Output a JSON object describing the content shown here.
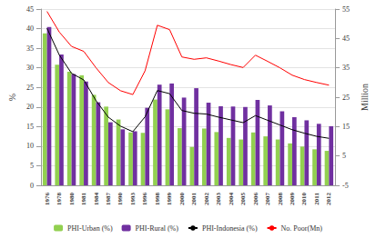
{
  "chart_data": {
    "type": "bar",
    "categories": [
      "1976",
      "1978",
      "1980",
      "1981",
      "1984",
      "1987",
      "1990",
      "1993",
      "1996",
      "1998",
      "1999",
      "2000",
      "2001",
      "2002",
      "2003",
      "2004",
      "2005",
      "2006",
      "2007",
      "2008",
      "2009",
      "2010",
      "2011",
      "2012"
    ],
    "y_label": "%",
    "y2_label": "Million",
    "ylim": [
      0,
      45
    ],
    "yticks": [
      0,
      5,
      10,
      15,
      20,
      25,
      30,
      35,
      40,
      45
    ],
    "y2lim": [
      -5,
      55
    ],
    "y2ticks": [
      -5,
      5,
      15,
      25,
      35,
      45,
      55
    ],
    "grid": true,
    "legend": "bottom",
    "series": [
      {
        "name": "PHI-Urban (%)",
        "type": "bar",
        "color": "#92d050",
        "values": [
          38.8,
          30.8,
          29.0,
          28.1,
          23.1,
          20.1,
          16.8,
          13.5,
          13.4,
          21.9,
          19.4,
          14.6,
          9.8,
          14.5,
          13.6,
          12.1,
          11.7,
          13.5,
          12.5,
          11.7,
          10.7,
          9.9,
          9.2,
          8.8
        ]
      },
      {
        "name": "PHI-Rural (%)",
        "type": "bar",
        "color": "#7030a0",
        "values": [
          40.4,
          33.4,
          28.4,
          26.5,
          21.2,
          16.1,
          14.3,
          13.8,
          19.8,
          25.7,
          26.0,
          22.4,
          24.8,
          21.1,
          20.2,
          20.1,
          20.0,
          21.8,
          20.4,
          18.9,
          17.4,
          16.6,
          15.7,
          15.1
        ]
      },
      {
        "name": "PHI-Indonesia (%)",
        "type": "line",
        "color": "#000000",
        "values": [
          40.1,
          33.3,
          28.6,
          26.9,
          21.6,
          17.4,
          15.1,
          13.7,
          17.5,
          24.2,
          23.4,
          19.1,
          18.4,
          18.2,
          17.4,
          16.7,
          16.0,
          17.8,
          16.6,
          15.4,
          14.2,
          13.3,
          12.5,
          12.0
        ]
      },
      {
        "name": "No. Poor(Mn)",
        "type": "line",
        "color": "#ff0000",
        "axis": "y2",
        "values": [
          54.2,
          47.2,
          42.3,
          40.6,
          35.0,
          30.0,
          27.2,
          25.9,
          34.0,
          49.5,
          48.0,
          38.7,
          37.9,
          38.4,
          37.3,
          36.1,
          35.1,
          39.3,
          37.2,
          35.0,
          32.5,
          31.0,
          30.0,
          29.1
        ]
      }
    ]
  }
}
